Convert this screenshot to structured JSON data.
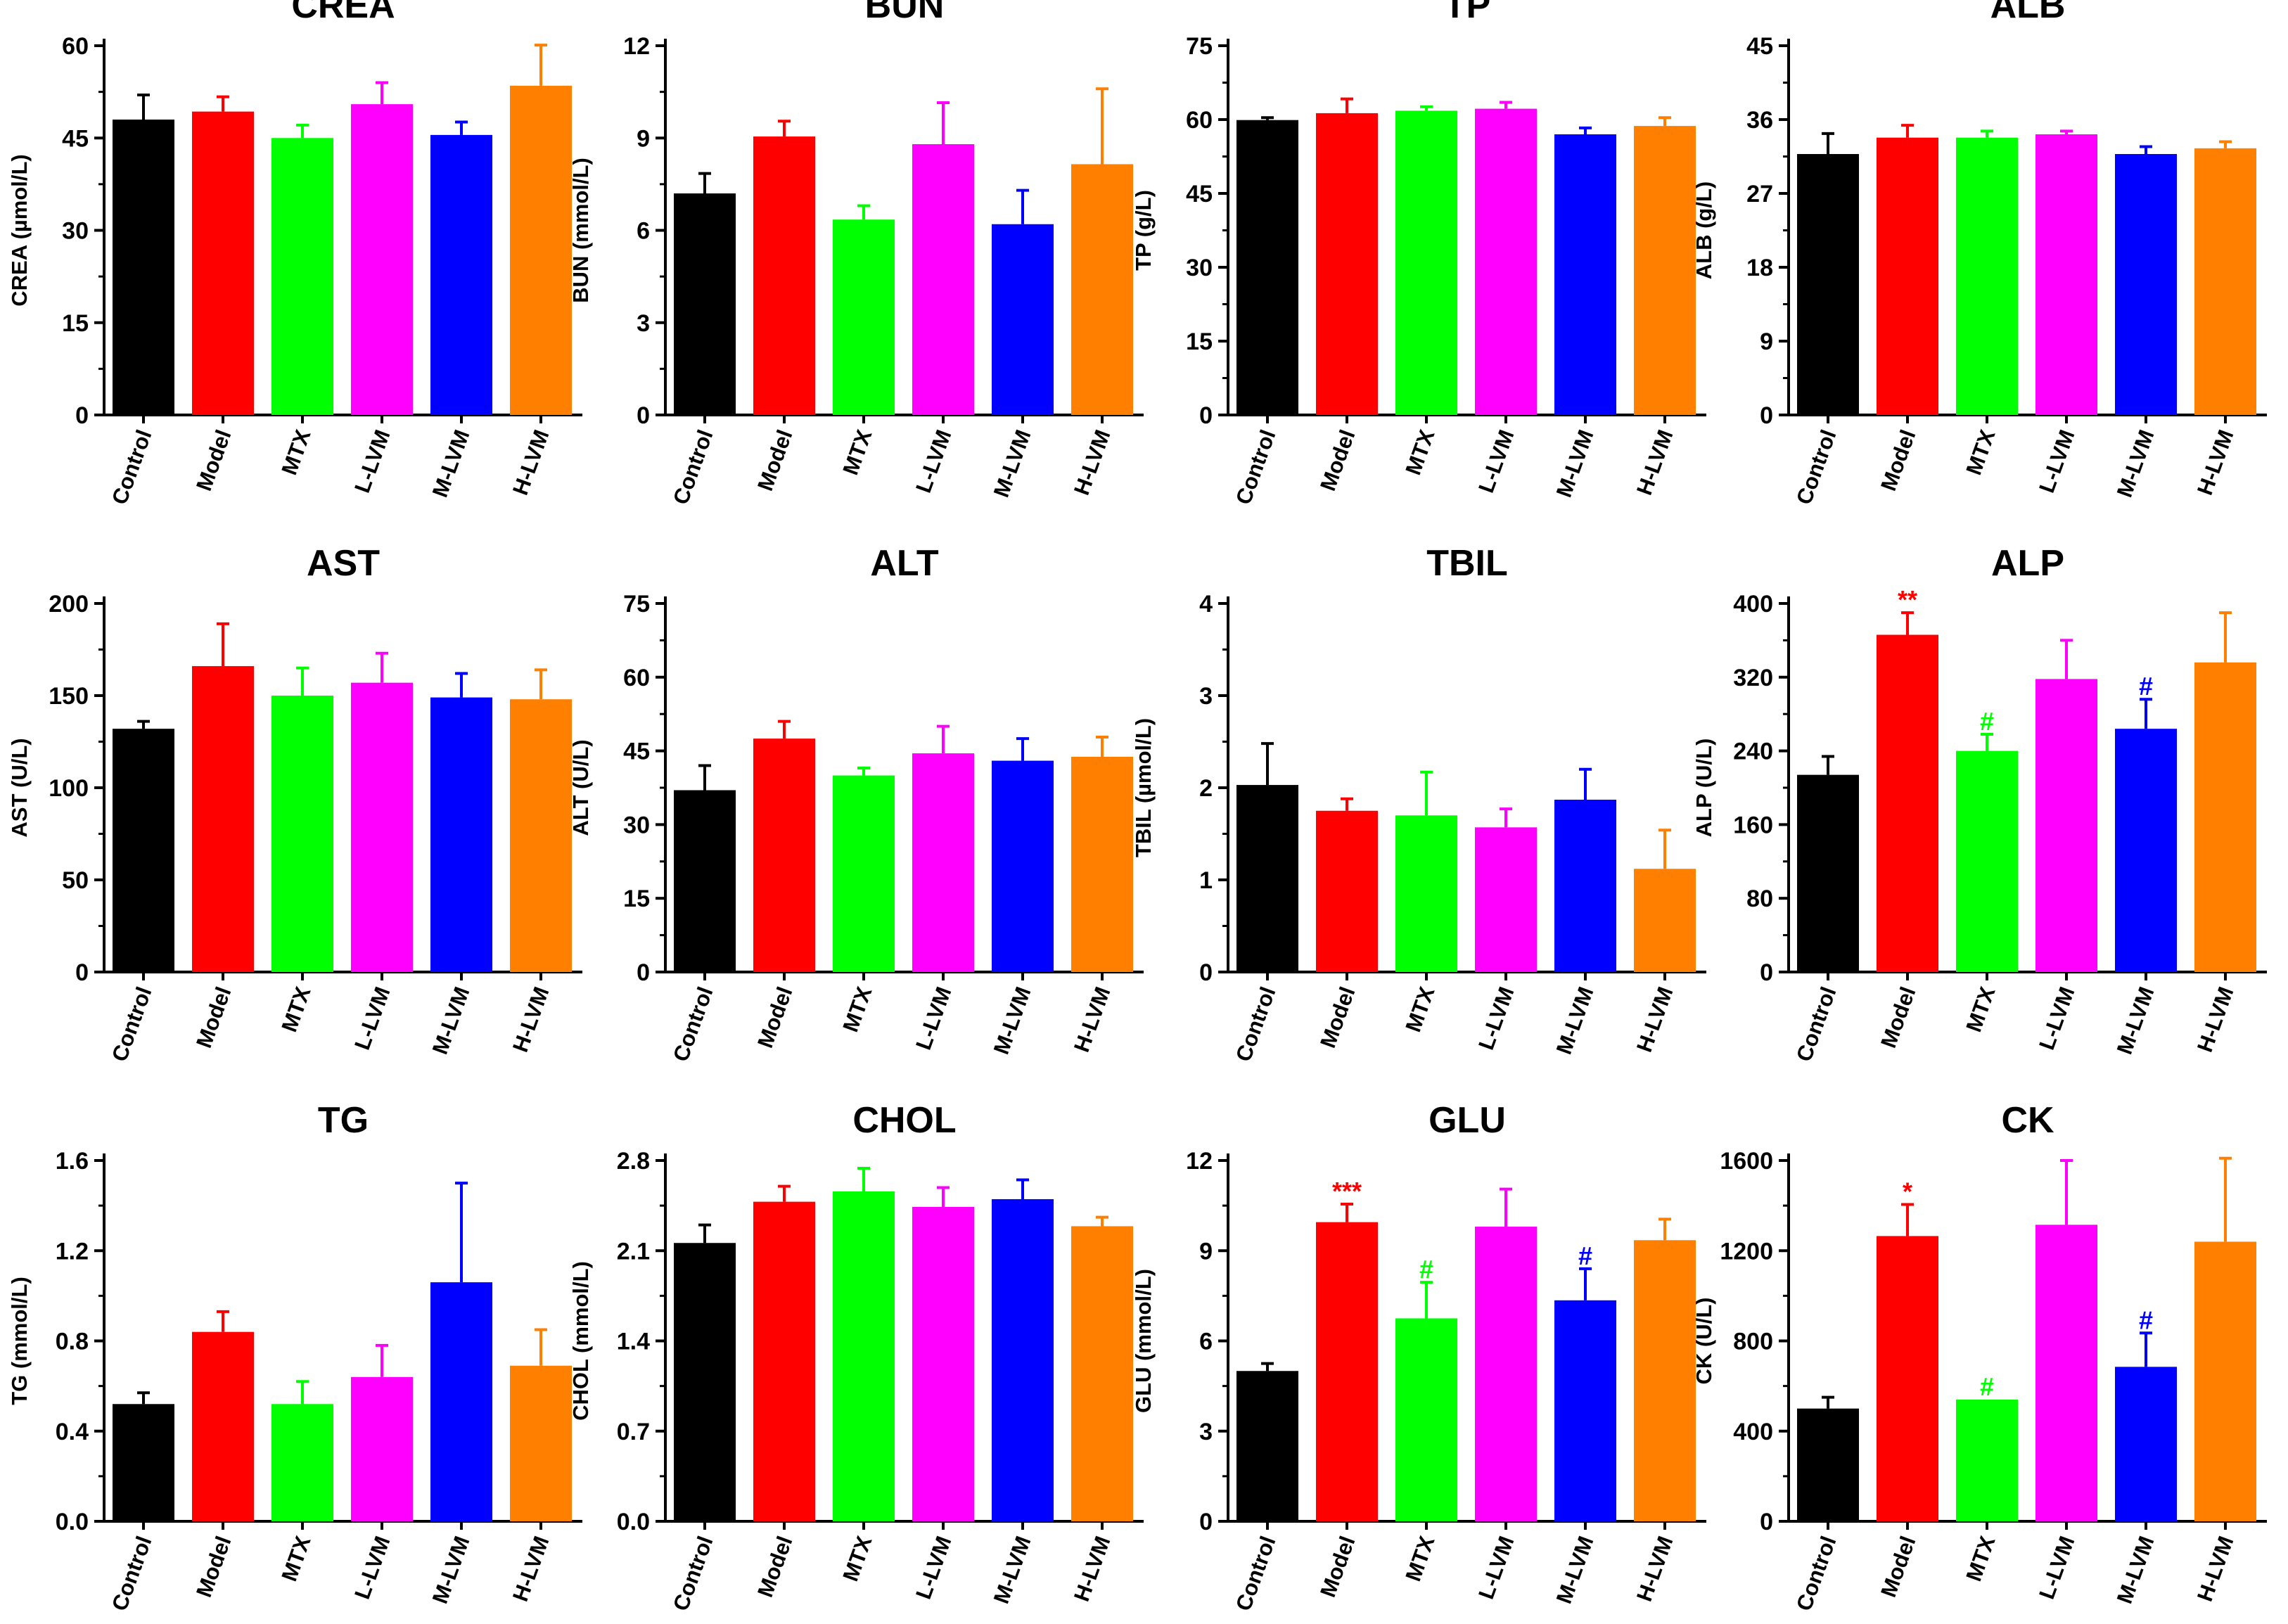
{
  "chart_data": [
    {
      "type": "bar",
      "title": "CREA",
      "ylabel": "CREA (µmol/L)",
      "ylim": [
        0,
        60
      ],
      "yticks": [
        "0",
        "15",
        "30",
        "45",
        "60"
      ],
      "categories": [
        "Control",
        "Model",
        "MTX",
        "L-LVM",
        "M-LVM",
        "H-LVM"
      ],
      "values": [
        48,
        49.3,
        45,
        50.5,
        45.5,
        53.5
      ],
      "errors": [
        4,
        2.4,
        2.1,
        3.5,
        2.1,
        6.6
      ],
      "annotations": [
        "",
        "",
        "",
        "",
        "",
        ""
      ]
    },
    {
      "type": "bar",
      "title": "BUN",
      "ylabel": "BUN (mmol/L)",
      "ylim": [
        0,
        12
      ],
      "yticks": [
        "0",
        "3",
        "6",
        "9",
        "12"
      ],
      "categories": [
        "Control",
        "Model",
        "MTX",
        "L-LVM",
        "M-LVM",
        "H-LVM"
      ],
      "values": [
        7.2,
        9.05,
        6.35,
        8.8,
        6.2,
        8.15
      ],
      "errors": [
        0.65,
        0.5,
        0.45,
        1.35,
        1.1,
        2.45
      ],
      "annotations": [
        "",
        "",
        "",
        "",
        "",
        ""
      ]
    },
    {
      "type": "bar",
      "title": "TP",
      "ylabel": "TP (g/L)",
      "ylim": [
        0,
        75
      ],
      "yticks": [
        "0",
        "15",
        "30",
        "45",
        "60",
        "75"
      ],
      "categories": [
        "Control",
        "Model",
        "MTX",
        "L-LVM",
        "M-LVM",
        "H-LVM"
      ],
      "values": [
        59.9,
        61.3,
        61.8,
        62.2,
        57,
        58.7
      ],
      "errors": [
        0.5,
        2.9,
        0.8,
        1.3,
        1.3,
        1.7
      ],
      "annotations": [
        "",
        "",
        "",
        "",
        "",
        ""
      ]
    },
    {
      "type": "bar",
      "title": "ALB",
      "ylabel": "ALB (g/L)",
      "ylim": [
        0,
        45
      ],
      "yticks": [
        "0",
        "9",
        "18",
        "27",
        "36",
        "45"
      ],
      "categories": [
        "Control",
        "Model",
        "MTX",
        "L-LVM",
        "M-LVM",
        "H-LVM"
      ],
      "values": [
        31.8,
        33.8,
        33.8,
        34.2,
        31.8,
        32.5
      ],
      "errors": [
        2.5,
        1.5,
        0.8,
        0.4,
        0.9,
        0.8
      ],
      "annotations": [
        "",
        "",
        "",
        "",
        "",
        ""
      ]
    },
    {
      "type": "bar",
      "title": "AST",
      "ylabel": "AST (U/L)",
      "ylim": [
        0,
        200
      ],
      "yticks": [
        "0",
        "50",
        "100",
        "150",
        "200"
      ],
      "categories": [
        "Control",
        "Model",
        "MTX",
        "L-LVM",
        "M-LVM",
        "H-LVM"
      ],
      "values": [
        132,
        166,
        150,
        157,
        149,
        148
      ],
      "errors": [
        4,
        23,
        15,
        16,
        13,
        16
      ],
      "annotations": [
        "",
        "",
        "",
        "",
        "",
        ""
      ]
    },
    {
      "type": "bar",
      "title": "ALT",
      "ylabel": "ALT (U/L)",
      "ylim": [
        0,
        75
      ],
      "yticks": [
        "0",
        "15",
        "30",
        "45",
        "60",
        "75"
      ],
      "categories": [
        "Control",
        "Model",
        "MTX",
        "L-LVM",
        "M-LVM",
        "H-LVM"
      ],
      "values": [
        37,
        47.5,
        40,
        44.5,
        43,
        43.8
      ],
      "errors": [
        5,
        3.5,
        1.5,
        5.5,
        4.5,
        4
      ],
      "annotations": [
        "",
        "",
        "",
        "",
        "",
        ""
      ]
    },
    {
      "type": "bar",
      "title": "TBIL",
      "ylabel": "TBIL (µmol/L)",
      "ylim": [
        0,
        4
      ],
      "yticks": [
        "0",
        "1",
        "2",
        "3",
        "4"
      ],
      "categories": [
        "Control",
        "Model",
        "MTX",
        "L-LVM",
        "M-LVM",
        "H-LVM"
      ],
      "values": [
        2.03,
        1.75,
        1.7,
        1.57,
        1.87,
        1.12
      ],
      "errors": [
        0.45,
        0.13,
        0.47,
        0.2,
        0.33,
        0.42
      ],
      "annotations": [
        "",
        "",
        "",
        "",
        "",
        ""
      ]
    },
    {
      "type": "bar",
      "title": "ALP",
      "ylabel": "ALP (U/L)",
      "ylim": [
        0,
        400
      ],
      "yticks": [
        "0",
        "80",
        "160",
        "240",
        "320",
        "400"
      ],
      "categories": [
        "Control",
        "Model",
        "MTX",
        "L-LVM",
        "M-LVM",
        "H-LVM"
      ],
      "values": [
        214,
        366,
        240,
        318,
        264,
        336
      ],
      "errors": [
        20,
        24,
        18,
        42,
        32,
        54
      ],
      "annotations": [
        "",
        "**",
        "#",
        "",
        "#",
        ""
      ]
    },
    {
      "type": "bar",
      "title": "TG",
      "ylabel": "TG (mmol/L)",
      "ylim": [
        0,
        1.6
      ],
      "yticks": [
        "0.0",
        "0.4",
        "0.8",
        "1.2",
        "1.6"
      ],
      "categories": [
        "Control",
        "Model",
        "MTX",
        "L-LVM",
        "M-LVM",
        "H-LVM"
      ],
      "values": [
        0.52,
        0.84,
        0.52,
        0.64,
        1.06,
        0.69
      ],
      "errors": [
        0.05,
        0.09,
        0.1,
        0.14,
        0.44,
        0.16
      ],
      "annotations": [
        "",
        "",
        "",
        "",
        "",
        ""
      ]
    },
    {
      "type": "bar",
      "title": "CHOL",
      "ylabel": "CHOL (mmol/L)",
      "ylim": [
        0,
        2.8
      ],
      "yticks": [
        "0.0",
        "0.7",
        "1.4",
        "2.1",
        "2.8"
      ],
      "categories": [
        "Control",
        "Model",
        "MTX",
        "L-LVM",
        "M-LVM",
        "H-LVM"
      ],
      "values": [
        2.16,
        2.48,
        2.56,
        2.44,
        2.5,
        2.29
      ],
      "errors": [
        0.14,
        0.12,
        0.18,
        0.15,
        0.15,
        0.07
      ],
      "annotations": [
        "",
        "",
        "",
        "",
        "",
        ""
      ]
    },
    {
      "type": "bar",
      "title": "GLU",
      "ylabel": "GLU (mmol/L)",
      "ylim": [
        0,
        12
      ],
      "yticks": [
        "0",
        "3",
        "6",
        "9",
        "12"
      ],
      "categories": [
        "Control",
        "Model",
        "MTX",
        "L-LVM",
        "M-LVM",
        "H-LVM"
      ],
      "values": [
        5,
        9.95,
        6.75,
        9.8,
        7.35,
        9.35
      ],
      "errors": [
        0.25,
        0.6,
        1.2,
        1.25,
        1.05,
        0.7
      ],
      "annotations": [
        "",
        "***",
        "#",
        "",
        "#",
        ""
      ]
    },
    {
      "type": "bar",
      "title": "CK",
      "ylabel": "CK (U/L)",
      "ylim": [
        0,
        1600
      ],
      "yticks": [
        "0",
        "400",
        "800",
        "1200",
        "1600"
      ],
      "categories": [
        "Control",
        "Model",
        "MTX",
        "L-LVM",
        "M-LVM",
        "H-LVM"
      ],
      "values": [
        500,
        1265,
        540,
        1315,
        685,
        1240
      ],
      "errors": [
        50,
        140,
        0,
        285,
        150,
        370
      ],
      "annotations": [
        "",
        "*",
        "#",
        "",
        "#",
        ""
      ]
    }
  ],
  "colors": {
    "Control": "#000000",
    "Model": "#ff0000",
    "MTX": "#00ff00",
    "L-LVM": "#ff00ff",
    "M-LVM": "#0000ff",
    "H-LVM": "#ff7f00"
  },
  "annotation_colors": {
    "Model": "#ff0000",
    "MTX": "#00ff00",
    "M-LVM": "#0000ff"
  }
}
